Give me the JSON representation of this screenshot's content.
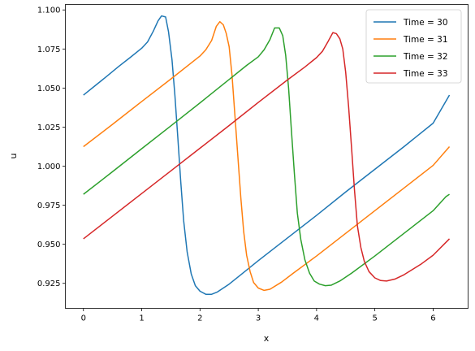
{
  "chart_data": {
    "type": "line",
    "xlabel": "x",
    "ylabel": "u",
    "xlim": [
      -0.31,
      6.6
    ],
    "ylim": [
      0.909,
      1.1035
    ],
    "xticks": [
      0,
      1,
      2,
      3,
      4,
      5,
      6
    ],
    "xtick_labels": [
      "0",
      "1",
      "2",
      "3",
      "4",
      "5",
      "6"
    ],
    "yticks": [
      0.925,
      0.95,
      0.975,
      1.0,
      1.025,
      1.05,
      1.075,
      1.1
    ],
    "ytick_labels": [
      "0.925",
      "0.950",
      "0.975",
      "1.000",
      "1.025",
      "1.050",
      "1.075",
      "1.100"
    ],
    "grid": false,
    "legend_position": "top-right",
    "series": [
      {
        "name": "Time = 30",
        "color": "#1f77b4",
        "points": [
          [
            0,
            1.0455
          ],
          [
            0.2,
            1.0515
          ],
          [
            0.4,
            1.0575
          ],
          [
            0.6,
            1.0637
          ],
          [
            0.8,
            1.0695
          ],
          [
            1.0,
            1.0755
          ],
          [
            1.1,
            1.0795
          ],
          [
            1.2,
            1.0865
          ],
          [
            1.28,
            1.093
          ],
          [
            1.34,
            1.0962
          ],
          [
            1.41,
            1.0955
          ],
          [
            1.46,
            1.086
          ],
          [
            1.52,
            1.068
          ],
          [
            1.57,
            1.045
          ],
          [
            1.62,
            1.018
          ],
          [
            1.67,
            0.99
          ],
          [
            1.72,
            0.965
          ],
          [
            1.78,
            0.945
          ],
          [
            1.85,
            0.931
          ],
          [
            1.92,
            0.9235
          ],
          [
            2.0,
            0.92
          ],
          [
            2.1,
            0.918
          ],
          [
            2.2,
            0.918
          ],
          [
            2.3,
            0.9195
          ],
          [
            2.5,
            0.9245
          ],
          [
            2.7,
            0.9305
          ],
          [
            3.0,
            0.9395
          ],
          [
            3.5,
            0.954
          ],
          [
            4.0,
            0.9685
          ],
          [
            4.5,
            0.9835
          ],
          [
            5.0,
            0.998
          ],
          [
            5.5,
            1.0125
          ],
          [
            6.0,
            1.0275
          ],
          [
            6.28,
            1.0455
          ]
        ]
      },
      {
        "name": "Time = 31",
        "color": "#ff7f0e",
        "points": [
          [
            0,
            1.0125
          ],
          [
            0.5,
            1.0268
          ],
          [
            1.0,
            1.0414
          ],
          [
            1.5,
            1.0558
          ],
          [
            2.0,
            1.0705
          ],
          [
            2.1,
            1.0745
          ],
          [
            2.2,
            1.0805
          ],
          [
            2.28,
            1.0895
          ],
          [
            2.34,
            1.0925
          ],
          [
            2.4,
            1.0905
          ],
          [
            2.45,
            1.085
          ],
          [
            2.5,
            1.0765
          ],
          [
            2.55,
            1.058
          ],
          [
            2.6,
            1.032
          ],
          [
            2.65,
            1.006
          ],
          [
            2.7,
            0.98
          ],
          [
            2.75,
            0.958
          ],
          [
            2.8,
            0.943
          ],
          [
            2.86,
            0.9325
          ],
          [
            2.92,
            0.9255
          ],
          [
            3.0,
            0.922
          ],
          [
            3.1,
            0.9205
          ],
          [
            3.2,
            0.9212
          ],
          [
            3.4,
            0.9258
          ],
          [
            3.6,
            0.9315
          ],
          [
            4.0,
            0.9425
          ],
          [
            4.5,
            0.957
          ],
          [
            5.0,
            0.9715
          ],
          [
            5.5,
            0.986
          ],
          [
            6.0,
            1.0005
          ],
          [
            6.28,
            1.0125
          ]
        ]
      },
      {
        "name": "Time = 32",
        "color": "#2ca02c",
        "points": [
          [
            0,
            0.982
          ],
          [
            0.5,
            0.9965
          ],
          [
            1.0,
            1.0112
          ],
          [
            1.5,
            1.0258
          ],
          [
            2.0,
            1.0405
          ],
          [
            2.5,
            1.0555
          ],
          [
            2.8,
            1.0645
          ],
          [
            3.0,
            1.07
          ],
          [
            3.1,
            1.0745
          ],
          [
            3.2,
            1.081
          ],
          [
            3.28,
            1.0885
          ],
          [
            3.36,
            1.0885
          ],
          [
            3.42,
            1.0835
          ],
          [
            3.47,
            1.071
          ],
          [
            3.52,
            1.05
          ],
          [
            3.57,
            1.022
          ],
          [
            3.62,
            0.995
          ],
          [
            3.67,
            0.97
          ],
          [
            3.73,
            0.953
          ],
          [
            3.8,
            0.94
          ],
          [
            3.88,
            0.9315
          ],
          [
            3.96,
            0.9265
          ],
          [
            4.05,
            0.9245
          ],
          [
            4.15,
            0.9235
          ],
          [
            4.25,
            0.9238
          ],
          [
            4.4,
            0.9265
          ],
          [
            4.6,
            0.9315
          ],
          [
            5.0,
            0.9425
          ],
          [
            5.5,
            0.957
          ],
          [
            6.0,
            0.9715
          ],
          [
            6.22,
            0.9805
          ],
          [
            6.28,
            0.982
          ]
        ]
      },
      {
        "name": "Time = 33",
        "color": "#d62728",
        "points": [
          [
            0,
            0.9535
          ],
          [
            0.5,
            0.968
          ],
          [
            1.0,
            0.9825
          ],
          [
            1.5,
            0.997
          ],
          [
            2.0,
            1.0115
          ],
          [
            2.5,
            1.026
          ],
          [
            3.0,
            1.0408
          ],
          [
            3.5,
            1.0552
          ],
          [
            3.8,
            1.0635
          ],
          [
            4.0,
            1.0695
          ],
          [
            4.1,
            1.0735
          ],
          [
            4.2,
            1.08
          ],
          [
            4.28,
            1.0855
          ],
          [
            4.34,
            1.0848
          ],
          [
            4.4,
            1.0815
          ],
          [
            4.45,
            1.075
          ],
          [
            4.5,
            1.06
          ],
          [
            4.55,
            1.038
          ],
          [
            4.6,
            1.012
          ],
          [
            4.65,
            0.985
          ],
          [
            4.7,
            0.962
          ],
          [
            4.76,
            0.948
          ],
          [
            4.82,
            0.939
          ],
          [
            4.9,
            0.9325
          ],
          [
            5.0,
            0.9285
          ],
          [
            5.1,
            0.9268
          ],
          [
            5.2,
            0.9265
          ],
          [
            5.35,
            0.9278
          ],
          [
            5.5,
            0.9305
          ],
          [
            5.8,
            0.9375
          ],
          [
            6.0,
            0.943
          ],
          [
            6.2,
            0.9505
          ],
          [
            6.28,
            0.9535
          ]
        ]
      }
    ]
  }
}
